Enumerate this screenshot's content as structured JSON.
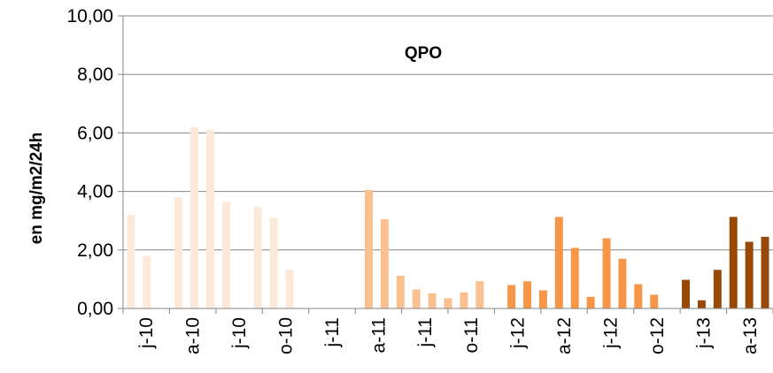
{
  "chart_data": {
    "type": "bar",
    "title": "QPO",
    "xlabel": "",
    "ylabel": "en mg/m2/24h",
    "ylim": [
      0,
      10
    ],
    "yticks": [
      "0,00",
      "2,00",
      "4,00",
      "6,00",
      "8,00",
      "10,00"
    ],
    "grid": "horizontal",
    "x_tick_labels": [
      "j-10",
      "a-10",
      "j-10",
      "o-10",
      "j-11",
      "a-11",
      "j-11",
      "o-11",
      "j-12",
      "a-12",
      "j-12",
      "o-12",
      "j-13",
      "a-13"
    ],
    "period_colors": {
      "2010": "#fde9d9",
      "2011": "#fac090",
      "2012": "#f79646",
      "2013": "#984807"
    },
    "values": [
      3.2,
      1.8,
      null,
      3.8,
      6.2,
      6.1,
      3.65,
      null,
      3.48,
      3.1,
      1.33,
      null,
      null,
      null,
      null,
      4.05,
      3.05,
      1.12,
      0.65,
      0.52,
      0.35,
      0.55,
      0.93,
      null,
      0.8,
      0.93,
      0.62,
      3.13,
      2.07,
      0.4,
      2.4,
      1.7,
      0.83,
      0.47,
      null,
      0.98,
      0.28,
      1.32,
      3.13,
      2.28,
      2.45
    ],
    "value_periods": [
      "2010",
      "2010",
      "2010",
      "2010",
      "2010",
      "2010",
      "2010",
      "2010",
      "2010",
      "2010",
      "2010",
      "2011",
      "2011",
      "2011",
      "2011",
      "2011",
      "2011",
      "2011",
      "2011",
      "2011",
      "2011",
      "2011",
      "2011",
      "2012",
      "2012",
      "2012",
      "2012",
      "2012",
      "2012",
      "2012",
      "2012",
      "2012",
      "2012",
      "2012",
      "2012",
      "2013",
      "2013",
      "2013",
      "2013",
      "2013",
      "2013"
    ]
  }
}
